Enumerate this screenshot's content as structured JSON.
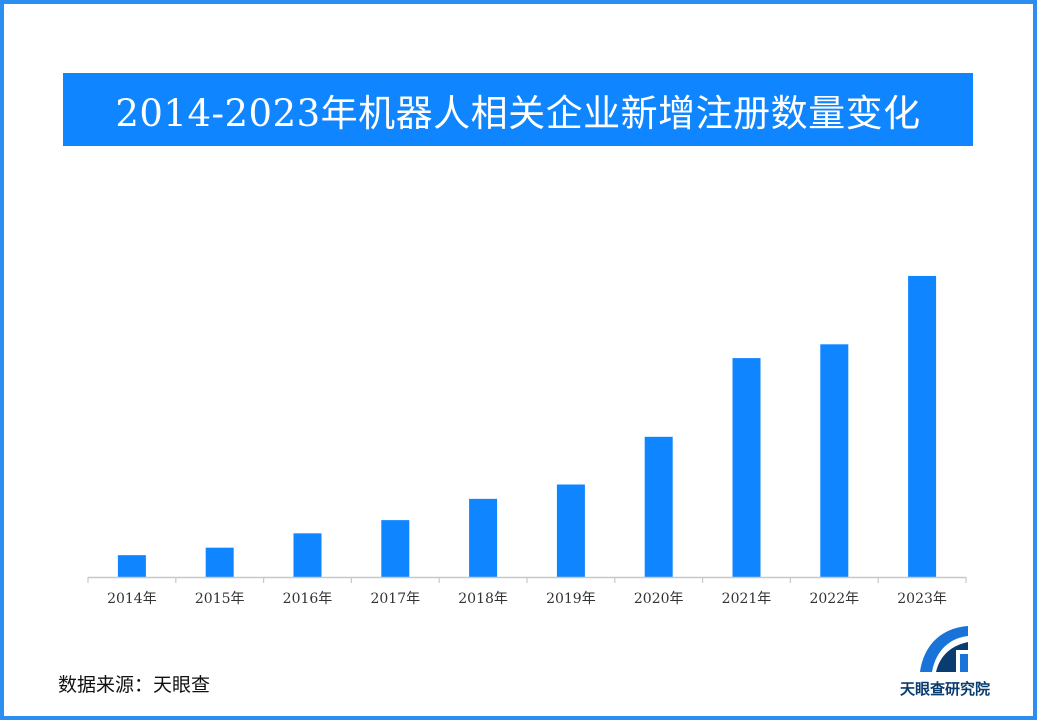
{
  "title": "2014-2023年机器人相关企业新增注册数量变化",
  "source": "数据来源：天眼查",
  "logo": {
    "text": "天眼查研究院",
    "icon": "tianyancha-logo-icon"
  },
  "colors": {
    "bar": "#0f86ff",
    "title_bg": "#0f86ff",
    "frame": "#2b8ef0",
    "axis": "#c8c8c8"
  },
  "chart_data": {
    "type": "bar",
    "title": "2014-2023年机器人相关企业新增注册数量变化",
    "categories": [
      "2014年",
      "2015年",
      "2016年",
      "2017年",
      "2018年",
      "2019年",
      "2020年",
      "2021年",
      "2022年",
      "2023年"
    ],
    "values": [
      7.6,
      10.2,
      15.2,
      19.8,
      27.2,
      32.2,
      48.8,
      76.2,
      81.0,
      104.8
    ],
    "ylim": [
      0,
      110
    ],
    "xlabel": "",
    "ylabel": "",
    "grid": false,
    "legend": "none",
    "value_axis_labels": false
  }
}
